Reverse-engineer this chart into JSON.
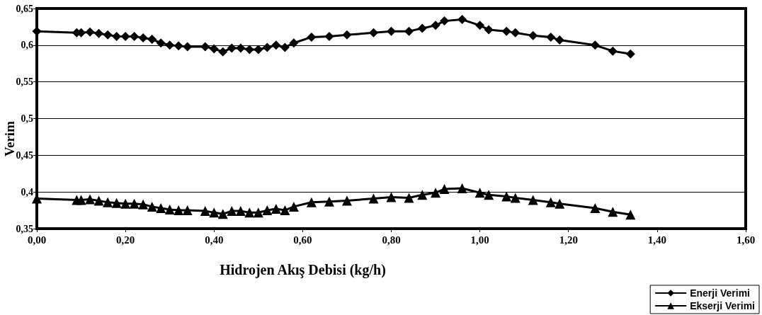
{
  "chart_data": {
    "type": "line",
    "xlabel": "Hidrojen Akış Debisi (kg/h)",
    "ylabel": "Verim",
    "xlim": [
      0,
      1.6
    ],
    "ylim": [
      0.35,
      0.65
    ],
    "xticks": [
      {
        "value": 0,
        "label": "0,00"
      },
      {
        "value": 0.2,
        "label": "0,20"
      },
      {
        "value": 0.4,
        "label": "0,40"
      },
      {
        "value": 0.6,
        "label": "0,60"
      },
      {
        "value": 0.8,
        "label": "0,80"
      },
      {
        "value": 1,
        "label": "1,00"
      },
      {
        "value": 1.2,
        "label": "1,20"
      },
      {
        "value": 1.4,
        "label": "1,40"
      },
      {
        "value": 1.6,
        "label": "1,60"
      }
    ],
    "yticks": [
      {
        "value": 0.35,
        "label": "0,35"
      },
      {
        "value": 0.4,
        "label": "0,4"
      },
      {
        "value": 0.45,
        "label": "0,45"
      },
      {
        "value": 0.5,
        "label": "0,5"
      },
      {
        "value": 0.55,
        "label": "0,55"
      },
      {
        "value": 0.6,
        "label": "0,6"
      },
      {
        "value": 0.65,
        "label": "0,65"
      }
    ],
    "x": [
      0,
      0.09,
      0.1,
      0.12,
      0.14,
      0.16,
      0.18,
      0.2,
      0.22,
      0.24,
      0.26,
      0.28,
      0.3,
      0.32,
      0.34,
      0.38,
      0.4,
      0.42,
      0.44,
      0.46,
      0.48,
      0.5,
      0.52,
      0.54,
      0.56,
      0.58,
      0.62,
      0.66,
      0.7,
      0.76,
      0.8,
      0.84,
      0.87,
      0.9,
      0.92,
      0.96,
      1,
      1.02,
      1.06,
      1.08,
      1.12,
      1.16,
      1.18,
      1.26,
      1.3,
      1.34
    ],
    "series": [
      {
        "name": "Enerji Verimi",
        "color": "#000000",
        "marker": "diamond",
        "values": [
          0.619,
          0.617,
          0.617,
          0.618,
          0.616,
          0.614,
          0.612,
          0.612,
          0.612,
          0.61,
          0.608,
          0.603,
          0.6,
          0.599,
          0.598,
          0.598,
          0.595,
          0.591,
          0.596,
          0.596,
          0.594,
          0.594,
          0.597,
          0.6,
          0.597,
          0.603,
          0.611,
          0.612,
          0.614,
          0.617,
          0.619,
          0.619,
          0.623,
          0.627,
          0.633,
          0.635,
          0.627,
          0.621,
          0.619,
          0.617,
          0.613,
          0.611,
          0.607,
          0.6,
          0.592,
          0.588
        ]
      },
      {
        "name": "Ekserji Verimi",
        "color": "#000000",
        "marker": "triangle",
        "values": [
          0.391,
          0.389,
          0.389,
          0.39,
          0.388,
          0.386,
          0.385,
          0.384,
          0.384,
          0.383,
          0.38,
          0.378,
          0.376,
          0.375,
          0.375,
          0.374,
          0.372,
          0.37,
          0.374,
          0.374,
          0.372,
          0.372,
          0.375,
          0.377,
          0.375,
          0.38,
          0.386,
          0.387,
          0.388,
          0.391,
          0.393,
          0.392,
          0.396,
          0.399,
          0.404,
          0.405,
          0.399,
          0.396,
          0.394,
          0.392,
          0.389,
          0.386,
          0.384,
          0.378,
          0.373,
          0.369
        ]
      }
    ],
    "grid": "y",
    "legend": "bottom right",
    "line_style": "solid"
  }
}
